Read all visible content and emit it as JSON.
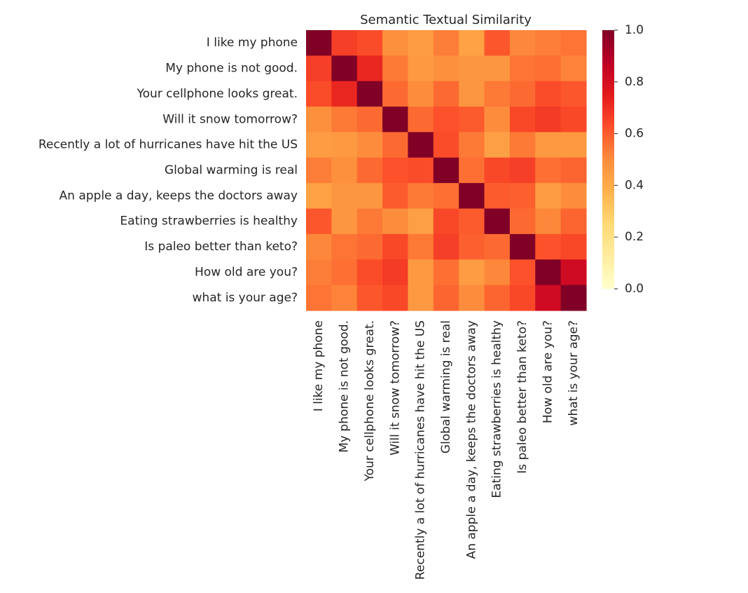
{
  "chart_data": {
    "type": "heatmap",
    "title": "Semantic Textual Similarity",
    "colormap": "YlOrRd",
    "labels": [
      "I like my phone",
      "My phone is not good.",
      "Your cellphone looks great.",
      "Will it snow tomorrow?",
      "Recently a lot of hurricanes have hit the US",
      "Global warming is real",
      "An apple a day, keeps the doctors away",
      "Eating strawberries is healthy",
      "Is paleo better than keto?",
      "How old are you?",
      "what is your age?"
    ],
    "values": [
      [
        1.0,
        0.66,
        0.63,
        0.49,
        0.45,
        0.53,
        0.43,
        0.61,
        0.51,
        0.53,
        0.55
      ],
      [
        0.66,
        1.0,
        0.72,
        0.54,
        0.46,
        0.49,
        0.47,
        0.47,
        0.55,
        0.56,
        0.52
      ],
      [
        0.63,
        0.72,
        1.0,
        0.57,
        0.5,
        0.57,
        0.47,
        0.54,
        0.57,
        0.63,
        0.61
      ],
      [
        0.49,
        0.54,
        0.57,
        1.0,
        0.57,
        0.62,
        0.6,
        0.5,
        0.64,
        0.67,
        0.64
      ],
      [
        0.45,
        0.46,
        0.5,
        0.57,
        1.0,
        0.63,
        0.54,
        0.44,
        0.54,
        0.46,
        0.46
      ],
      [
        0.53,
        0.49,
        0.57,
        0.62,
        0.63,
        1.0,
        0.56,
        0.64,
        0.66,
        0.56,
        0.58
      ],
      [
        0.43,
        0.47,
        0.47,
        0.6,
        0.54,
        0.56,
        1.0,
        0.6,
        0.59,
        0.45,
        0.5
      ],
      [
        0.61,
        0.47,
        0.54,
        0.5,
        0.44,
        0.64,
        0.6,
        1.0,
        0.57,
        0.51,
        0.58
      ],
      [
        0.51,
        0.55,
        0.57,
        0.64,
        0.54,
        0.66,
        0.59,
        0.57,
        1.0,
        0.62,
        0.64
      ],
      [
        0.53,
        0.56,
        0.63,
        0.67,
        0.46,
        0.56,
        0.45,
        0.51,
        0.62,
        1.0,
        0.82
      ],
      [
        0.55,
        0.52,
        0.61,
        0.64,
        0.46,
        0.58,
        0.5,
        0.58,
        0.64,
        0.82,
        1.0
      ]
    ],
    "colorbar": {
      "min": 0.0,
      "max": 1.0,
      "ticks": [
        "0.0",
        "0.2",
        "0.4",
        "0.6",
        "0.8",
        "1.0"
      ]
    }
  }
}
